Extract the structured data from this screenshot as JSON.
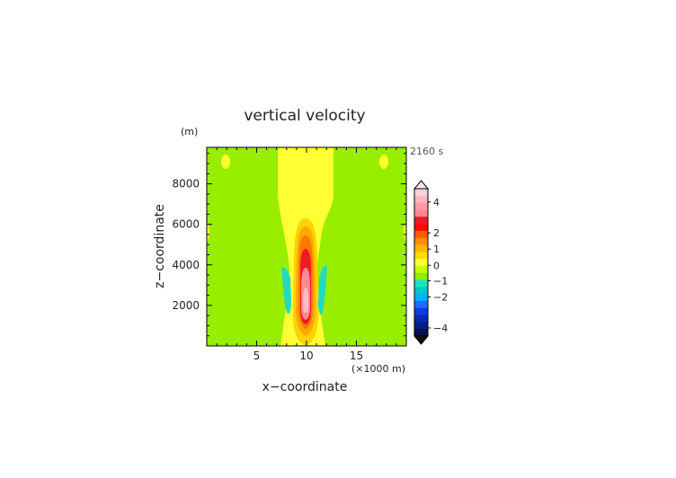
{
  "chart_data": {
    "type": "heatmap",
    "title": "vertical velocity",
    "xlabel": "x−coordinate",
    "ylabel": "z−coordinate",
    "y_unit": "(m)",
    "x_unit": "(×1000 m)",
    "time_label": "2160 s",
    "xlim": [
      0,
      20
    ],
    "ylim": [
      0,
      9800
    ],
    "x_ticks": [
      5,
      10,
      15
    ],
    "x_tick_labels": [
      "5",
      "10",
      "15"
    ],
    "y_ticks": [
      2000,
      4000,
      6000,
      8000
    ],
    "y_tick_labels": [
      "2000",
      "4000",
      "6000",
      "8000"
    ],
    "colorbar": {
      "tick_labels": [
        "4",
        "2",
        "1",
        "0",
        "−1",
        "−2",
        "−4"
      ],
      "levels": [
        {
          "color": "#ffd0d8"
        },
        {
          "color": "#ffb5bf"
        },
        {
          "color": "#ff9aa6"
        },
        {
          "color": "#ff8893"
        },
        {
          "color": "#ee1b23"
        },
        {
          "color": "#ff0a0a"
        },
        {
          "color": "#ff5a00"
        },
        {
          "color": "#ff8c00"
        },
        {
          "color": "#ffb400"
        },
        {
          "color": "#ffdc00"
        },
        {
          "color": "#ffff33"
        },
        {
          "color": "#c8ff00"
        },
        {
          "color": "#90ee00"
        },
        {
          "color": "#1ee0c0"
        },
        {
          "color": "#00c8c8"
        },
        {
          "color": "#00b0ff"
        },
        {
          "color": "#1e6cff"
        },
        {
          "color": "#0c3ee0"
        },
        {
          "color": "#0a2ab0"
        },
        {
          "color": "#081c80"
        },
        {
          "color": "#060f4e"
        }
      ]
    },
    "fields": [
      {
        "level": "green_background",
        "color": "#99ee00"
      },
      {
        "level": "0_to_0.5",
        "color": "#ffff33",
        "region": "updraft column and side bands"
      },
      {
        "level": "0.5_to_1",
        "color": "#ffd200"
      },
      {
        "level": "1_to_1.5",
        "color": "#ffa800"
      },
      {
        "level": "1.5_to_2",
        "color": "#ff7800"
      },
      {
        "level": "2_to_3",
        "color": "#ee1b23"
      },
      {
        "level": "3_to_4",
        "color": "#ff8893"
      },
      {
        "level": "above_4",
        "color": "#ffbcc6"
      },
      {
        "level": "-1_to_-0.5",
        "color": "#1edcc0",
        "region": "downdraft flanks"
      }
    ]
  }
}
